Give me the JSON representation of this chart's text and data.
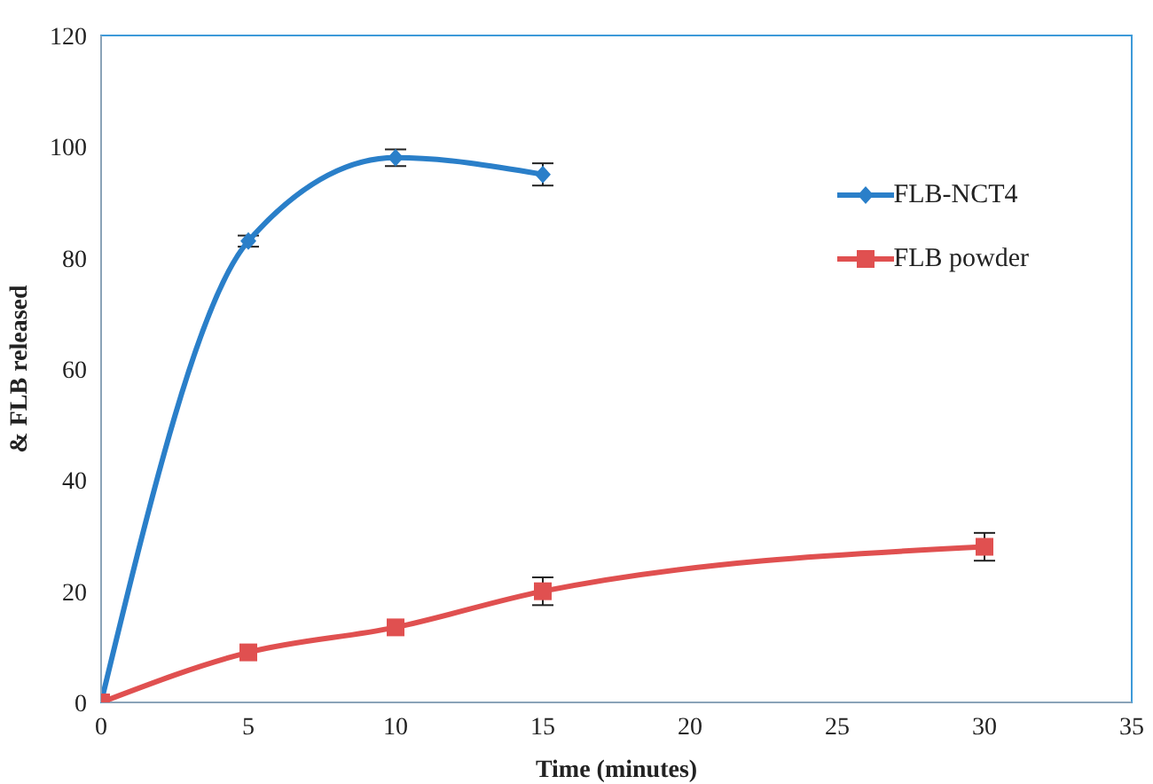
{
  "chart_data": {
    "type": "line",
    "xlabel": "Time (minutes)",
    "ylabel": "& FLB released",
    "xlim": [
      0,
      35
    ],
    "xticks": [
      0,
      5,
      10,
      15,
      20,
      25,
      30,
      35
    ],
    "ylim": [
      0,
      120
    ],
    "yticks": [
      0,
      20,
      40,
      60,
      80,
      100,
      120
    ],
    "grid": false,
    "legend": "top right",
    "series": [
      {
        "name": "FLB-NCT4",
        "color": "#2a7fc9",
        "marker": "diamond",
        "x": [
          0,
          5,
          10,
          15
        ],
        "values": [
          0,
          83,
          98,
          95
        ],
        "errors": [
          null,
          1,
          1.5,
          2
        ]
      },
      {
        "name": "FLB powder",
        "color": "#e05050",
        "marker": "square",
        "x": [
          0,
          5,
          10,
          15,
          30
        ],
        "values": [
          0,
          9,
          13.5,
          20,
          28
        ],
        "errors": [
          null,
          null,
          null,
          2.5,
          2.5
        ]
      }
    ]
  }
}
